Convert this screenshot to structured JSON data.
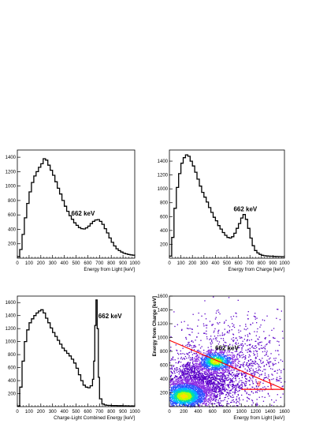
{
  "chart_data": [
    {
      "type": "line",
      "xlabel": "Energy from Light [keV]",
      "ylabel": "",
      "xlim": [
        0,
        1000
      ],
      "ylim": [
        0,
        1500
      ],
      "xticks": [
        "0",
        "100",
        "200",
        "300",
        "400",
        "500",
        "600",
        "700",
        "800",
        "900",
        "1000"
      ],
      "yticks": [
        "200",
        "400",
        "600",
        "800",
        "1000",
        "1200",
        "1400"
      ],
      "annotation": {
        "text": "662 keV",
        "x": 560,
        "y": 590
      },
      "grid": false,
      "series": [
        {
          "color": "#000000",
          "x": [
            0,
            20,
            40,
            60,
            80,
            100,
            120,
            140,
            160,
            180,
            200,
            220,
            240,
            260,
            280,
            300,
            320,
            340,
            360,
            380,
            400,
            420,
            440,
            460,
            480,
            500,
            520,
            540,
            560,
            580,
            600,
            620,
            640,
            660,
            680,
            700,
            720,
            740,
            760,
            780,
            800,
            820,
            840,
            860,
            880,
            900,
            920,
            940,
            960,
            980,
            1000
          ],
          "y": [
            20,
            120,
            330,
            560,
            760,
            920,
            1050,
            1140,
            1200,
            1260,
            1310,
            1380,
            1360,
            1290,
            1220,
            1150,
            1060,
            970,
            890,
            800,
            720,
            650,
            590,
            540,
            490,
            455,
            425,
            410,
            405,
            420,
            445,
            480,
            510,
            530,
            535,
            510,
            470,
            410,
            350,
            280,
            220,
            170,
            130,
            105,
            85,
            70,
            60,
            52,
            46,
            42,
            40
          ]
        }
      ]
    },
    {
      "type": "line",
      "xlabel": "Energy from Charge [keV]",
      "ylabel": "",
      "xlim": [
        0,
        1000
      ],
      "ylim": [
        0,
        1560
      ],
      "xticks": [
        "0",
        "100",
        "200",
        "300",
        "400",
        "500",
        "600",
        "700",
        "800",
        "900",
        "1000"
      ],
      "yticks": [
        "200",
        "400",
        "600",
        "800",
        "1000",
        "1200",
        "1400"
      ],
      "annotation": {
        "text": "662 keV",
        "x": 660,
        "y": 680
      },
      "grid": false,
      "series": [
        {
          "color": "#000000",
          "x": [
            0,
            20,
            40,
            60,
            80,
            100,
            120,
            140,
            160,
            180,
            200,
            220,
            240,
            260,
            280,
            300,
            320,
            340,
            360,
            380,
            400,
            420,
            440,
            460,
            480,
            500,
            520,
            540,
            560,
            580,
            600,
            620,
            640,
            660,
            680,
            700,
            720,
            740,
            760,
            780,
            800,
            820,
            840,
            860,
            880,
            900,
            920,
            940,
            960,
            980,
            1000
          ],
          "y": [
            30,
            300,
            720,
            1020,
            1220,
            1370,
            1450,
            1490,
            1470,
            1400,
            1330,
            1240,
            1140,
            1040,
            950,
            880,
            810,
            730,
            660,
            590,
            540,
            470,
            420,
            370,
            330,
            300,
            290,
            310,
            360,
            430,
            500,
            580,
            630,
            560,
            430,
            290,
            180,
            110,
            75,
            55,
            42,
            35,
            32,
            30,
            28,
            26,
            25,
            24,
            23,
            22,
            22
          ]
        }
      ]
    },
    {
      "type": "line",
      "xlabel": "Charge-Light Combined Energy [keV]",
      "ylabel": "",
      "xlim": [
        0,
        1000
      ],
      "ylim": [
        0,
        1700
      ],
      "xticks": [
        "0",
        "100",
        "200",
        "300",
        "400",
        "500",
        "600",
        "700",
        "800",
        "900",
        "1000"
      ],
      "yticks": [
        "200",
        "400",
        "600",
        "800",
        "1000",
        "1200",
        "1400",
        "1600"
      ],
      "annotation": {
        "text": "662 keV",
        "x": 790,
        "y": 1360
      },
      "grid": false,
      "series": [
        {
          "color": "#000000",
          "x": [
            0,
            20,
            40,
            60,
            80,
            100,
            120,
            140,
            160,
            180,
            200,
            220,
            240,
            260,
            280,
            300,
            320,
            340,
            360,
            380,
            400,
            420,
            440,
            460,
            480,
            500,
            520,
            540,
            560,
            580,
            600,
            620,
            640,
            650,
            660,
            670,
            680,
            690,
            700,
            720,
            740,
            760,
            780,
            800,
            850,
            900,
            950,
            1000
          ],
          "y": [
            10,
            300,
            700,
            1000,
            1180,
            1290,
            1350,
            1400,
            1440,
            1470,
            1490,
            1440,
            1360,
            1290,
            1210,
            1140,
            1080,
            1020,
            960,
            900,
            860,
            820,
            780,
            730,
            670,
            590,
            490,
            400,
            330,
            300,
            290,
            320,
            420,
            700,
            1250,
            1640,
            1200,
            450,
            120,
            40,
            25,
            20,
            18,
            16,
            14,
            12,
            10,
            10
          ]
        }
      ]
    },
    {
      "type": "heatmap",
      "xlabel": "Energy from Light [keV]",
      "ylabel": "Energy from Charge [keV]",
      "xlim": [
        0,
        1600
      ],
      "ylim": [
        0,
        1600
      ],
      "xticks": [
        "0",
        "200",
        "400",
        "600",
        "800",
        "1000",
        "1200",
        "1400",
        "1600"
      ],
      "yticks": [
        "200",
        "400",
        "600",
        "800",
        "1000",
        "1200",
        "1400",
        "1600"
      ],
      "annotation": {
        "text": "662 keV",
        "x": 800,
        "y": 820
      },
      "angle_label": "θ",
      "lines": [
        {
          "color": "#ff0000",
          "x": [
            0,
            1600
          ],
          "y": [
            960,
            250
          ]
        },
        {
          "color": "#ff0000",
          "x": [
            1000,
            1600
          ],
          "y": [
            250,
            250
          ]
        }
      ],
      "colors": [
        "#5a00c8",
        "#8a2be2",
        "#3050ff",
        "#00b4ff",
        "#00e0a0",
        "#b4ff00",
        "#ffe000"
      ],
      "clusters": [
        {
          "x": 200,
          "y": 160,
          "sx": 130,
          "sy": 80,
          "n": 1400
        },
        {
          "x": 350,
          "y": 320,
          "sx": 220,
          "sy": 180,
          "n": 1800
        },
        {
          "x": 640,
          "y": 660,
          "sx": 120,
          "sy": 70,
          "n": 700
        },
        {
          "x": 700,
          "y": 450,
          "sx": 400,
          "sy": 260,
          "n": 1200
        },
        {
          "x": 900,
          "y": 800,
          "sx": 450,
          "sy": 350,
          "n": 500
        }
      ]
    }
  ]
}
